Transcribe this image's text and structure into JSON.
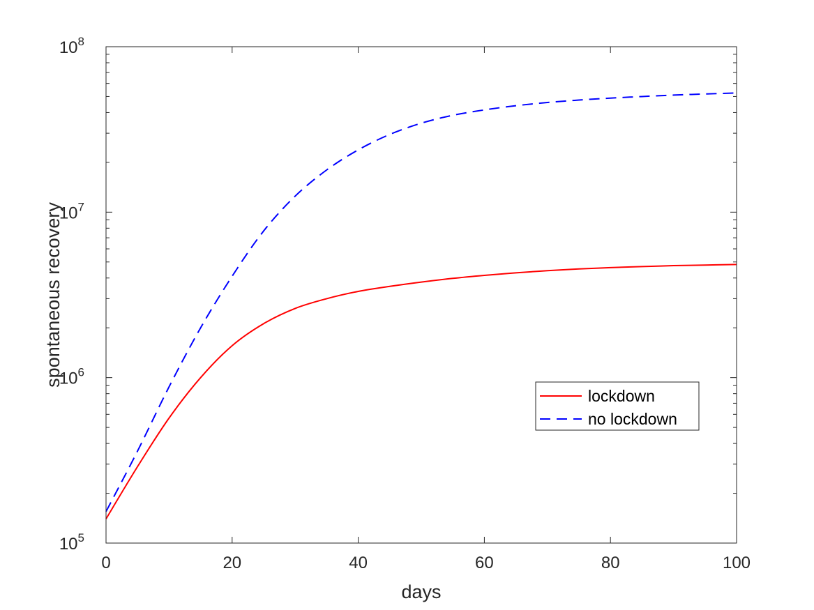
{
  "chart_data": {
    "type": "line",
    "xlabel": "days",
    "ylabel": "spontaneous recovery",
    "yscale": "log",
    "xlim": [
      0,
      100
    ],
    "ylim": [
      100000,
      100000000
    ],
    "x_ticks": [
      0,
      20,
      40,
      60,
      80,
      100
    ],
    "y_ticks": [
      {
        "value": 100000,
        "base": "10",
        "exp": "5"
      },
      {
        "value": 1000000,
        "base": "10",
        "exp": "6"
      },
      {
        "value": 10000000,
        "base": "10",
        "exp": "7"
      },
      {
        "value": 100000000,
        "base": "10",
        "exp": "8"
      }
    ],
    "grid": false,
    "legend_placement": "center-right",
    "x": [
      0,
      5,
      10,
      15,
      20,
      25,
      30,
      35,
      40,
      45,
      50,
      55,
      60,
      65,
      70,
      75,
      80,
      85,
      90,
      95,
      100
    ],
    "series": [
      {
        "name": "lockdown",
        "color": "#ff0000",
        "style": "solid",
        "values": [
          140000,
          290000,
          570000,
          1000000,
          1560000,
          2120000,
          2620000,
          3000000,
          3320000,
          3560000,
          3780000,
          3980000,
          4150000,
          4300000,
          4430000,
          4540000,
          4620000,
          4690000,
          4750000,
          4790000,
          4830000
        ]
      },
      {
        "name": "no lockdown",
        "color": "#0000ff",
        "style": "dashed",
        "values": [
          155000,
          360000,
          880000,
          2000000,
          4100000,
          7700000,
          12500000,
          18000000,
          23800000,
          29500000,
          34500000,
          38500000,
          41500000,
          44000000,
          46000000,
          47600000,
          48900000,
          50000000,
          51000000,
          51800000,
          52500000
        ]
      }
    ]
  }
}
